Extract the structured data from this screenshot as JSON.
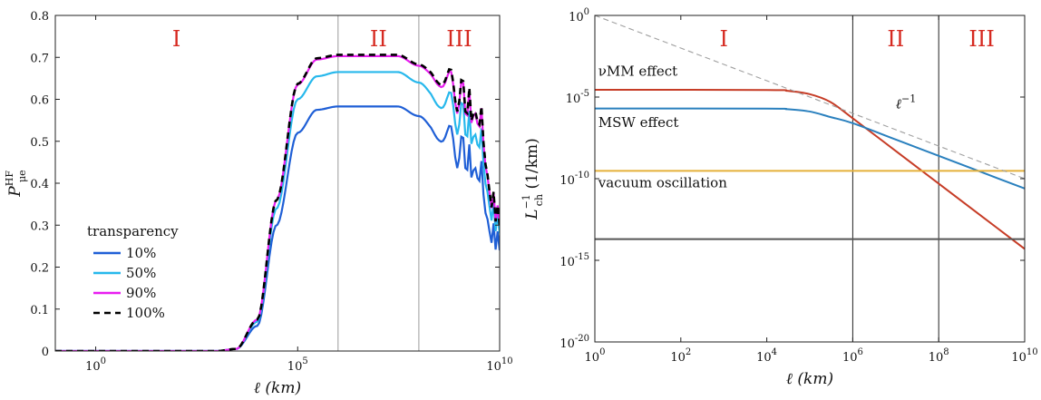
{
  "chart_data": [
    {
      "type": "line",
      "xscale": "log",
      "xlim": [
        0.1,
        10000000000
      ],
      "ylim": [
        0,
        0.8
      ],
      "x_ticks": [
        {
          "value": 1,
          "base": "10",
          "exp": "0"
        },
        {
          "value": 100000,
          "base": "10",
          "exp": "5"
        },
        {
          "value": 10000000000,
          "base": "10",
          "exp": "10"
        }
      ],
      "y_ticks": [
        "0",
        "0.1",
        "0.2",
        "0.3",
        "0.4",
        "0.5",
        "0.6",
        "0.7",
        "0.8"
      ],
      "xlabel": "ℓ (km)",
      "ylabel": {
        "main": "P",
        "sup": "HF",
        "sub": "μe"
      },
      "grid": false,
      "region_lines_x": [
        1000000,
        100000000
      ],
      "regions": [
        {
          "label": "I",
          "x": 100
        },
        {
          "label": "II",
          "x": 10000000
        },
        {
          "label": "III",
          "x": 1000000000
        }
      ],
      "legend": {
        "title": "transparency",
        "placement": "lower-left"
      },
      "series": [
        {
          "name": "10%",
          "color": "#1f5fd6",
          "style": "solid",
          "plateau": 0.583,
          "points": [
            [
              0.1,
              0
            ],
            [
              1000,
              0
            ],
            [
              3000,
              0.005
            ],
            [
              10000,
              0.06
            ],
            [
              30000,
              0.3
            ],
            [
              100000,
              0.52
            ],
            [
              300000,
              0.575
            ],
            [
              1000000,
              0.583
            ],
            [
              30000000,
              0.583
            ],
            [
              100000000,
              0.56
            ],
            [
              300000000,
              0.52
            ],
            [
              1000000000,
              0.48
            ],
            [
              3000000000,
              0.42
            ],
            [
              10000000000,
              0.24
            ]
          ]
        },
        {
          "name": "50%",
          "color": "#27b8ec",
          "style": "solid",
          "plateau": 0.665,
          "points": [
            [
              0.1,
              0
            ],
            [
              1000,
              0
            ],
            [
              3000,
              0.005
            ],
            [
              10000,
              0.07
            ],
            [
              30000,
              0.34
            ],
            [
              100000,
              0.6
            ],
            [
              300000,
              0.655
            ],
            [
              1000000,
              0.665
            ],
            [
              30000000,
              0.665
            ],
            [
              100000000,
              0.64
            ],
            [
              300000000,
              0.6
            ],
            [
              1000000000,
              0.56
            ],
            [
              3000000000,
              0.5
            ],
            [
              10000000000,
              0.28
            ]
          ]
        },
        {
          "name": "90%",
          "color": "#e81df0",
          "style": "solid",
          "plateau": 0.703,
          "points": [
            [
              0.1,
              0
            ],
            [
              1000,
              0
            ],
            [
              3000,
              0.005
            ],
            [
              10000,
              0.075
            ],
            [
              30000,
              0.36
            ],
            [
              100000,
              0.635
            ],
            [
              300000,
              0.695
            ],
            [
              1000000,
              0.703
            ],
            [
              30000000,
              0.703
            ],
            [
              100000000,
              0.68
            ],
            [
              300000000,
              0.65
            ],
            [
              1000000000,
              0.61
            ],
            [
              3000000000,
              0.55
            ],
            [
              10000000000,
              0.3
            ]
          ]
        },
        {
          "name": "100%",
          "color": "#000000",
          "style": "dashed",
          "plateau": 0.706,
          "points": [
            [
              0.1,
              0
            ],
            [
              1000,
              0
            ],
            [
              3000,
              0.005
            ],
            [
              10000,
              0.075
            ],
            [
              30000,
              0.36
            ],
            [
              100000,
              0.637
            ],
            [
              300000,
              0.698
            ],
            [
              1000000,
              0.706
            ],
            [
              30000000,
              0.706
            ],
            [
              100000000,
              0.683
            ],
            [
              300000000,
              0.655
            ],
            [
              1000000000,
              0.615
            ],
            [
              3000000000,
              0.555
            ],
            [
              10000000000,
              0.3
            ]
          ]
        }
      ]
    },
    {
      "type": "line",
      "xscale": "log",
      "yscale": "log",
      "xlim": [
        1,
        10000000000
      ],
      "ylim": [
        1e-20,
        1
      ],
      "x_ticks": [
        {
          "value": 1,
          "base": "10",
          "exp": "0"
        },
        {
          "value": 100,
          "base": "10",
          "exp": "2"
        },
        {
          "value": 10000,
          "base": "10",
          "exp": "4"
        },
        {
          "value": 1000000,
          "base": "10",
          "exp": "6"
        },
        {
          "value": 100000000,
          "base": "10",
          "exp": "8"
        },
        {
          "value": 10000000000,
          "base": "10",
          "exp": "10"
        }
      ],
      "y_ticks": [
        {
          "value": 1e-20,
          "base": "10",
          "exp": "-20"
        },
        {
          "value": 1e-15,
          "base": "10",
          "exp": "-15"
        },
        {
          "value": 1e-10,
          "base": "10",
          "exp": "-10"
        },
        {
          "value": 1e-05,
          "base": "10",
          "exp": "-5"
        },
        {
          "value": 1,
          "base": "10",
          "exp": "0"
        }
      ],
      "xlabel": "ℓ (km)",
      "ylabel": {
        "main": "L",
        "sup": "−1",
        "sub": "ch",
        "unit": " (1/km)"
      },
      "grid": false,
      "region_lines_x": [
        1000000,
        100000000
      ],
      "regions": [
        {
          "label": "I",
          "x": 1000
        },
        {
          "label": "II",
          "x": 10000000
        },
        {
          "label": "III",
          "x": 1000000000
        }
      ],
      "series": [
        {
          "name": "νMM effect",
          "color": "#c63c26",
          "style": "solid",
          "points": [
            [
              1,
              2.8e-05
            ],
            [
              10000,
              2.7e-05
            ],
            [
              30000,
              2.4e-05
            ],
            [
              100000,
              1.5e-05
            ],
            [
              300000,
              5e-06
            ],
            [
              1000000,
              5e-07
            ],
            [
              10000000,
              5e-09
            ],
            [
              100000000,
              5e-11
            ],
            [
              1000000000,
              5e-13
            ],
            [
              10000000000,
              5e-15
            ]
          ]
        },
        {
          "name": "MSW effect",
          "color": "#2a80be",
          "style": "solid",
          "points": [
            [
              1,
              2e-06
            ],
            [
              10000,
              1.95e-06
            ],
            [
              30000,
              1.8e-06
            ],
            [
              100000,
              1.3e-06
            ],
            [
              300000,
              6e-07
            ],
            [
              1000000,
              2.5e-07
            ],
            [
              10000000,
              2.5e-08
            ],
            [
              100000000,
              2.5e-09
            ],
            [
              1000000000,
              2.5e-10
            ],
            [
              10000000000,
              2.5e-11
            ]
          ]
        },
        {
          "name": "vacuum oscillation",
          "color": "#e5b03a",
          "style": "solid",
          "points": [
            [
              1,
              3e-10
            ],
            [
              10000000000,
              3e-10
            ]
          ]
        },
        {
          "name": "",
          "color": "#555555",
          "style": "solid",
          "points": [
            [
              1,
              2e-14
            ],
            [
              10000000000,
              2e-14
            ]
          ]
        },
        {
          "name": "ℓ⁻¹",
          "color": "#a0a0a0",
          "style": "dashed",
          "points": [
            [
              1,
              1
            ],
            [
              10000000000,
              1e-10
            ]
          ]
        }
      ],
      "annotations": [
        {
          "text": "νMM effect",
          "x": 1.2,
          "y": 0.0002,
          "color": "#111"
        },
        {
          "text": "MSW effect",
          "x": 1.2,
          "y": 1.5e-07,
          "color": "#111"
        },
        {
          "text": "vacuum oscillation",
          "x": 1.2,
          "y": 3e-11,
          "color": "#111"
        },
        {
          "text": "ℓ⁻¹",
          "x": 10000000,
          "y": 2e-06,
          "color": "#888"
        }
      ]
    }
  ]
}
